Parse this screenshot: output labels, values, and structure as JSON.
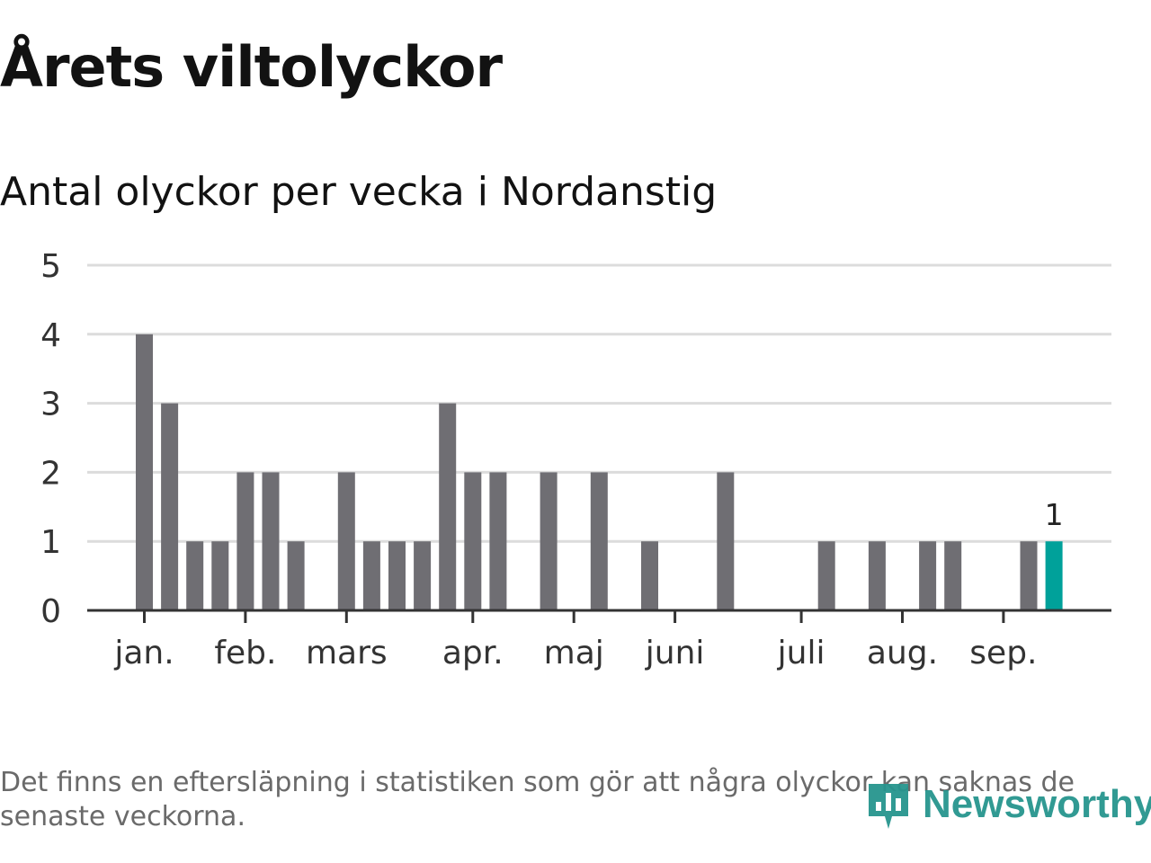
{
  "title": "Årets viltolyckor",
  "subtitle": "Antal olyckor per vecka i Nordanstig",
  "footnote": "Det finns en eftersläpning i statistiken som gör att några olyckor kan saknas de senaste veckorna.",
  "brand": {
    "name": "Newsworthy",
    "icon": "newsworthy-logo-icon",
    "color": "#27958e"
  },
  "colors": {
    "bar": "#6f6e73",
    "highlight": "#00a19a",
    "grid": "#dcdcdc",
    "axis": "#333333"
  },
  "chart_data": {
    "type": "bar",
    "title": "Årets viltolyckor",
    "subtitle": "Antal olyckor per vecka i Nordanstig",
    "xlabel": "",
    "ylabel": "",
    "ylim": [
      0,
      5
    ],
    "yticks": [
      "0",
      "1",
      "2",
      "3",
      "4",
      "5"
    ],
    "grid": true,
    "weeks": [
      1,
      2,
      3,
      4,
      5,
      6,
      7,
      8,
      9,
      10,
      11,
      12,
      13,
      14,
      15,
      16,
      17,
      18,
      19,
      20,
      21,
      22,
      23,
      24,
      25,
      26,
      27,
      28,
      29,
      30,
      31,
      32,
      33,
      34,
      35,
      36,
      37,
      38
    ],
    "values": [
      4,
      3,
      1,
      1,
      2,
      2,
      1,
      0,
      2,
      1,
      1,
      1,
      3,
      2,
      2,
      0,
      2,
      0,
      2,
      0,
      1,
      0,
      0,
      2,
      0,
      0,
      0,
      1,
      0,
      1,
      0,
      1,
      1,
      0,
      0,
      1,
      1,
      0
    ],
    "highlight_week": 37,
    "highlight_label": "1",
    "months": [
      {
        "label": "jan.",
        "week": 1
      },
      {
        "label": "feb.",
        "week": 5
      },
      {
        "label": "mars",
        "week": 9
      },
      {
        "label": "apr.",
        "week": 14
      },
      {
        "label": "maj",
        "week": 18
      },
      {
        "label": "juni",
        "week": 22
      },
      {
        "label": "juli",
        "week": 27
      },
      {
        "label": "aug.",
        "week": 31
      },
      {
        "label": "sep.",
        "week": 35
      }
    ]
  }
}
